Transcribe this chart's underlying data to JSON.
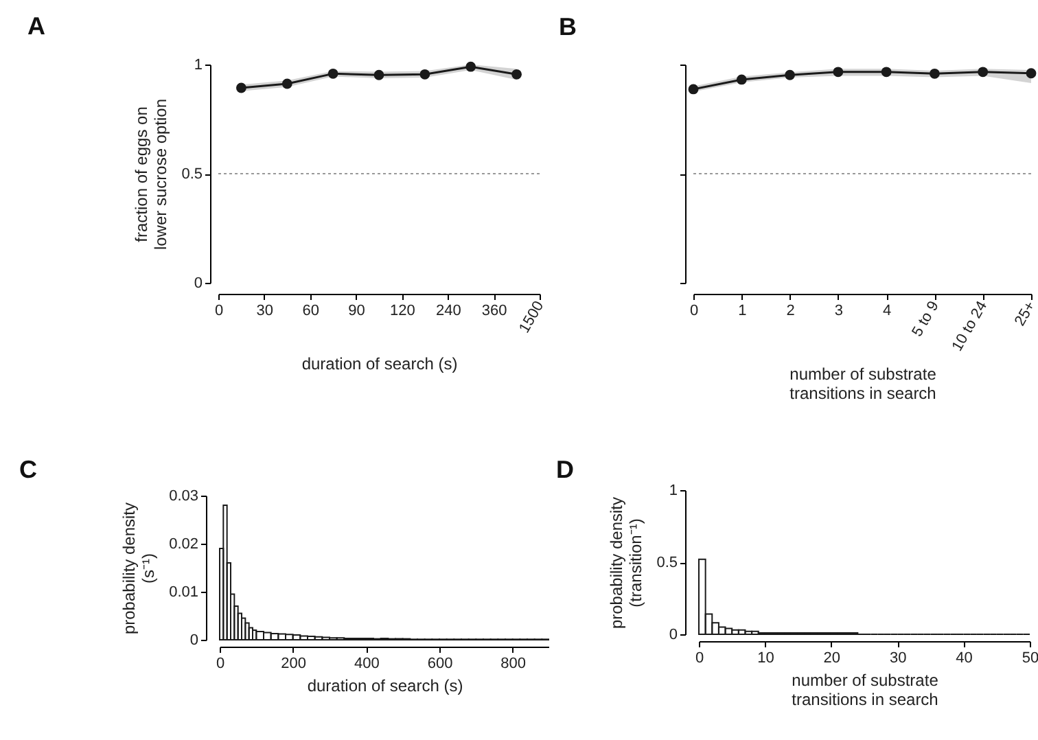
{
  "chart_data": [
    {
      "type": "line",
      "title": "A",
      "xlabel": "duration of search (s)",
      "ylabel": "fraction of eggs on\nlower sucrose option",
      "categories": [
        "0",
        null,
        "30",
        null,
        "60",
        null,
        "90",
        null,
        "120",
        null,
        "240",
        null,
        "360",
        null,
        "1500"
      ],
      "ylim": [
        0,
        1
      ],
      "yticks": [
        0,
        0.5,
        1
      ],
      "marker": "circle",
      "grid": false,
      "series": [
        {
          "color": "#1a1a1a",
          "values": [
            null,
            0.893,
            null,
            0.912,
            null,
            0.958,
            null,
            0.952,
            null,
            0.955,
            null,
            0.99,
            null,
            0.955,
            null
          ],
          "lower": [
            null,
            0.878,
            null,
            0.897,
            null,
            0.945,
            null,
            0.937,
            null,
            0.94,
            null,
            0.975,
            null,
            0.93,
            null
          ],
          "upper": [
            null,
            0.908,
            null,
            0.927,
            null,
            0.97,
            null,
            0.967,
            null,
            0.97,
            null,
            1.0,
            null,
            0.98,
            null
          ]
        }
      ],
      "ref_lines": [
        {
          "axis": "y",
          "value": 0.5,
          "color": "#999999",
          "line_style": "dotted"
        }
      ]
    },
    {
      "type": "line",
      "title": "B",
      "xlabel": "number of substrate\ntransitions in search",
      "categories": [
        "0",
        "1",
        "2",
        "3",
        "4",
        "5 to 9",
        "10 to 24",
        "25+"
      ],
      "ylim": [
        0,
        1
      ],
      "yticks": [
        0,
        0.5,
        1
      ],
      "tick_labels": "x",
      "marker": "circle",
      "grid": false,
      "series": [
        {
          "color": "#1a1a1a",
          "values": [
            0.887,
            0.931,
            0.952,
            0.966,
            0.966,
            0.958,
            0.966,
            0.96
          ],
          "lower": [
            0.875,
            0.918,
            0.94,
            0.948,
            0.948,
            0.942,
            0.948,
            0.915
          ],
          "upper": [
            0.9,
            0.945,
            0.965,
            0.98,
            0.98,
            0.972,
            0.98,
            0.975
          ]
        }
      ],
      "ref_lines": [
        {
          "axis": "y",
          "value": 0.5,
          "color": "#999999",
          "line_style": "dotted"
        }
      ]
    },
    {
      "type": "histogram",
      "title": "C",
      "xlabel": "duration of search (s)",
      "ylabel": "probability density\n(s⁻¹)",
      "color": "#1a1a1a",
      "xlim": [
        0,
        900
      ],
      "xticks": [
        0,
        200,
        400,
        600,
        800
      ],
      "ylim": [
        0,
        0.03
      ],
      "yticks": [
        0,
        0.01,
        0.02,
        0.03
      ],
      "grid": false,
      "bins": [
        0,
        10,
        20,
        30,
        40,
        50,
        60,
        70,
        80,
        90,
        100,
        120,
        140,
        160,
        180,
        200,
        220,
        240,
        260,
        280,
        300,
        320,
        340,
        360,
        380,
        400,
        420,
        440,
        460,
        480,
        500,
        520,
        540,
        560,
        580,
        600,
        620,
        640,
        660,
        680,
        700,
        720,
        740,
        760,
        780,
        800,
        820,
        840,
        860,
        880,
        900
      ],
      "values": [
        0.019,
        0.028,
        0.016,
        0.0095,
        0.007,
        0.0055,
        0.0045,
        0.0035,
        0.0025,
        0.002,
        0.0017,
        0.0015,
        0.0013,
        0.0012,
        0.0011,
        0.001,
        0.0008,
        0.0007,
        0.0006,
        0.0005,
        0.0004,
        0.0004,
        0.0003,
        0.0003,
        0.0003,
        0.0003,
        0.0002,
        0.0003,
        0.0002,
        0.0002,
        0.0002,
        0.0001,
        0.0001,
        0.0001,
        0.0001,
        0.0001,
        0.0001,
        0.0001,
        0.0001,
        0.0001,
        0.0001,
        0.0001,
        0.0001,
        0.0001,
        0.0001,
        0.0001,
        0.0001,
        0.0001,
        0.0001,
        0.0001
      ]
    },
    {
      "type": "histogram",
      "title": "D",
      "xlabel": "number of substrate\ntransitions in search",
      "ylabel": "probability density\n(transition⁻¹)",
      "color": "#1a1a1a",
      "xlim": [
        0,
        50
      ],
      "xticks": [
        0,
        10,
        20,
        30,
        40,
        50
      ],
      "ylim": [
        0,
        1
      ],
      "yticks": [
        0,
        0.5,
        1
      ],
      "grid": false,
      "bins": [
        0,
        1,
        2,
        3,
        4,
        5,
        6,
        7,
        8,
        9,
        10,
        11,
        12,
        13,
        14,
        15,
        16,
        17,
        18,
        19,
        20,
        21,
        22,
        23,
        24,
        25,
        26,
        27,
        28,
        29,
        30,
        31,
        32,
        33,
        34,
        35,
        36,
        37,
        38,
        39,
        40,
        41,
        42,
        43,
        44,
        45,
        46,
        47,
        48,
        49,
        50
      ],
      "values": [
        0.52,
        0.14,
        0.08,
        0.05,
        0.04,
        0.03,
        0.03,
        0.02,
        0.02,
        0.01,
        0.01,
        0.01,
        0.01,
        0.01,
        0.01,
        0.01,
        0.01,
        0.01,
        0.01,
        0.01,
        0.01,
        0.01,
        0.01,
        0.01,
        0,
        0,
        0,
        0,
        0,
        0,
        0,
        0,
        0,
        0,
        0,
        0,
        0,
        0,
        0,
        0,
        0,
        0,
        0,
        0,
        0,
        0,
        0,
        0,
        0,
        0
      ]
    }
  ]
}
